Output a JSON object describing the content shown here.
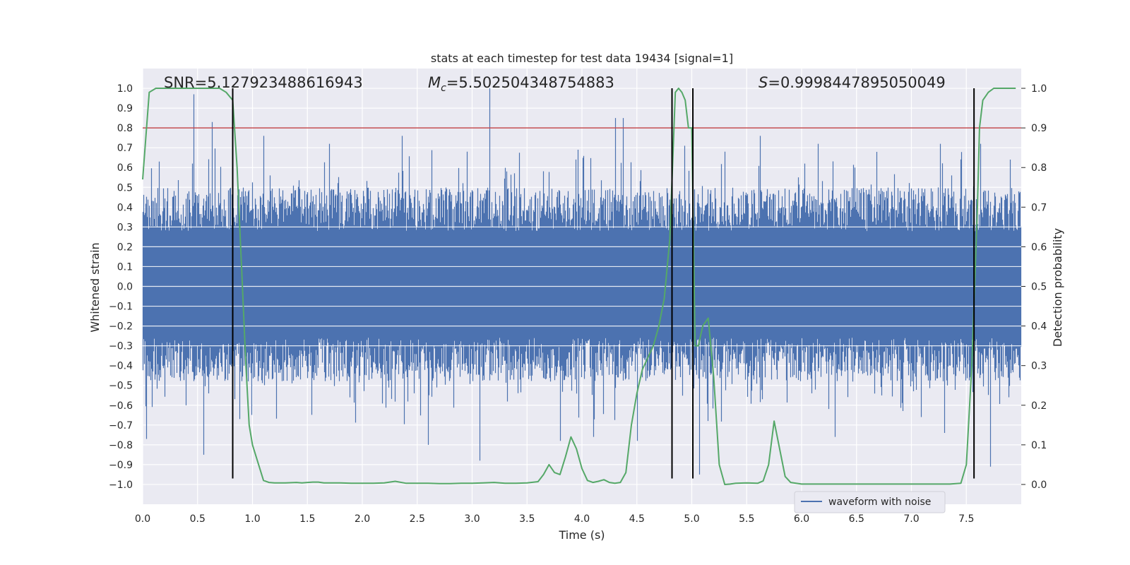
{
  "chart_data": {
    "type": "line",
    "title": "stats at each timestep for test data 19434 [signal=1]",
    "xlabel": "Time (s)",
    "ylabel": "Whitened strain",
    "y2label": "Detection probability",
    "xlim": [
      0.0,
      8.0
    ],
    "ylim": [
      -1.1,
      1.1
    ],
    "y2lim": [
      -0.05,
      1.05
    ],
    "xticks": [
      "0.0",
      "0.5",
      "1.0",
      "1.5",
      "2.0",
      "2.5",
      "3.0",
      "3.5",
      "4.0",
      "4.5",
      "5.0",
      "5.5",
      "6.0",
      "6.5",
      "7.0",
      "7.5"
    ],
    "yticks": [
      "1.0",
      "0.9",
      "0.8",
      "0.7",
      "0.6",
      "0.5",
      "0.4",
      "0.3",
      "0.2",
      "0.1",
      "0.0",
      "-0.1",
      "-0.2",
      "-0.3",
      "-0.4",
      "-0.5",
      "-0.6",
      "-0.7",
      "-0.8",
      "-0.9",
      "-1.0"
    ],
    "y2ticks": [
      "1.0",
      "0.9",
      "0.8",
      "0.7",
      "0.6",
      "0.5",
      "0.4",
      "0.3",
      "0.2",
      "0.1",
      "0.0"
    ],
    "grid": true,
    "legend_placement": "lower-right",
    "annotations": {
      "snr": "SNR=5.127923488616943",
      "mc_symbol": "M",
      "mc_sub": "c",
      "mc_value": "=5.502504348754883",
      "s_symbol": "S",
      "s_value": "=0.9998447895050049"
    },
    "series": [
      {
        "name": "waveform with noise",
        "axis": "left",
        "color": "#4c72b0",
        "style": "noise",
        "sample_rate": 1024,
        "duration": 8.0,
        "typical_upper": 0.4,
        "typical_lower": -0.38,
        "core_band": [
          -0.2,
          0.23
        ],
        "spikes": [
          {
            "x": 0.46,
            "y": 0.97
          },
          {
            "x": 0.63,
            "y": 0.83
          },
          {
            "x": 0.55,
            "y": -0.85
          },
          {
            "x": 0.03,
            "y": -0.77
          },
          {
            "x": 1.1,
            "y": 0.76
          },
          {
            "x": 1.7,
            "y": 0.72
          },
          {
            "x": 2.36,
            "y": 0.76
          },
          {
            "x": 2.6,
            "y": -0.8
          },
          {
            "x": 3.07,
            "y": -0.88
          },
          {
            "x": 3.16,
            "y": 1.0
          },
          {
            "x": 3.8,
            "y": -0.78
          },
          {
            "x": 4.3,
            "y": 0.85
          },
          {
            "x": 4.37,
            "y": 0.85
          },
          {
            "x": 4.1,
            "y": -0.76
          },
          {
            "x": 4.5,
            "y": -0.78
          },
          {
            "x": 4.93,
            "y": 0.71
          },
          {
            "x": 5.07,
            "y": -0.95
          },
          {
            "x": 5.62,
            "y": 0.76
          },
          {
            "x": 6.15,
            "y": 0.72
          },
          {
            "x": 6.3,
            "y": -0.76
          },
          {
            "x": 7.26,
            "y": 0.72
          },
          {
            "x": 7.3,
            "y": -0.74
          },
          {
            "x": 7.63,
            "y": 0.72
          },
          {
            "x": 7.72,
            "y": -0.91
          },
          {
            "x": 0.15,
            "y": 0.63
          },
          {
            "x": 0.45,
            "y": 0.62
          },
          {
            "x": 2.95,
            "y": 0.68
          },
          {
            "x": 3.96,
            "y": 0.69
          },
          {
            "x": 7.9,
            "y": 0.64
          },
          {
            "x": 5.3,
            "y": 0.68
          }
        ]
      },
      {
        "name": "",
        "axis": "right",
        "color": "#55a868",
        "style": "line",
        "x": [
          0.0,
          0.06,
          0.12,
          0.2,
          0.3,
          0.5,
          0.7,
          0.76,
          0.82,
          0.86,
          0.9,
          0.94,
          0.97,
          1.0,
          1.1,
          1.15,
          1.2,
          1.3,
          1.4,
          1.45,
          1.5,
          1.55,
          1.6,
          1.65,
          1.7,
          1.8,
          1.9,
          2.0,
          2.1,
          2.2,
          2.3,
          2.4,
          2.5,
          2.6,
          2.7,
          2.8,
          2.9,
          3.0,
          3.1,
          3.2,
          3.3,
          3.4,
          3.5,
          3.6,
          3.65,
          3.7,
          3.75,
          3.8,
          3.85,
          3.9,
          3.95,
          4.0,
          4.05,
          4.1,
          4.15,
          4.2,
          4.25,
          4.3,
          4.35,
          4.4,
          4.45,
          4.5,
          4.55,
          4.6,
          4.65,
          4.7,
          4.75,
          4.8,
          4.85,
          4.88,
          4.91,
          4.94,
          4.97,
          5.0,
          5.03,
          5.06,
          5.1,
          5.15,
          5.2,
          5.25,
          5.3,
          5.35,
          5.4,
          5.5,
          5.6,
          5.65,
          5.7,
          5.75,
          5.8,
          5.85,
          5.9,
          5.95,
          6.0,
          6.1,
          6.2,
          6.4,
          6.6,
          6.8,
          7.0,
          7.2,
          7.35,
          7.45,
          7.5,
          7.55,
          7.6,
          7.62,
          7.65,
          7.7,
          7.75,
          7.8,
          7.85,
          7.9,
          7.95
        ],
        "y": [
          0.77,
          0.99,
          1.0,
          1.0,
          1.0,
          1.0,
          1.0,
          0.99,
          0.97,
          0.8,
          0.55,
          0.3,
          0.15,
          0.1,
          0.01,
          0.005,
          0.004,
          0.004,
          0.005,
          0.004,
          0.005,
          0.006,
          0.006,
          0.004,
          0.004,
          0.004,
          0.003,
          0.003,
          0.003,
          0.004,
          0.008,
          0.003,
          0.003,
          0.003,
          0.002,
          0.002,
          0.003,
          0.003,
          0.004,
          0.005,
          0.003,
          0.003,
          0.004,
          0.007,
          0.025,
          0.05,
          0.03,
          0.025,
          0.07,
          0.12,
          0.09,
          0.04,
          0.01,
          0.005,
          0.008,
          0.012,
          0.005,
          0.003,
          0.005,
          0.03,
          0.15,
          0.23,
          0.29,
          0.32,
          0.35,
          0.4,
          0.47,
          0.62,
          0.99,
          1.0,
          0.99,
          0.97,
          0.9,
          0.9,
          0.35,
          0.35,
          0.4,
          0.42,
          0.27,
          0.05,
          0.0,
          0.001,
          0.003,
          0.004,
          0.003,
          0.009,
          0.05,
          0.16,
          0.09,
          0.02,
          0.005,
          0.003,
          0.001,
          0.001,
          0.001,
          0.001,
          0.001,
          0.001,
          0.001,
          0.001,
          0.001,
          0.003,
          0.05,
          0.3,
          0.69,
          0.9,
          0.97,
          0.99,
          1.0,
          1.0,
          1.0,
          1.0,
          1.0
        ]
      },
      {
        "name": "",
        "axis": "right",
        "color": "#c44e52",
        "style": "hline",
        "y": 0.9
      }
    ],
    "vlines": [
      0.82,
      4.82,
      5.01,
      7.57
    ],
    "vline_color": "#000000",
    "background": "#eaeaf2",
    "grid_color": "#ffffff"
  }
}
